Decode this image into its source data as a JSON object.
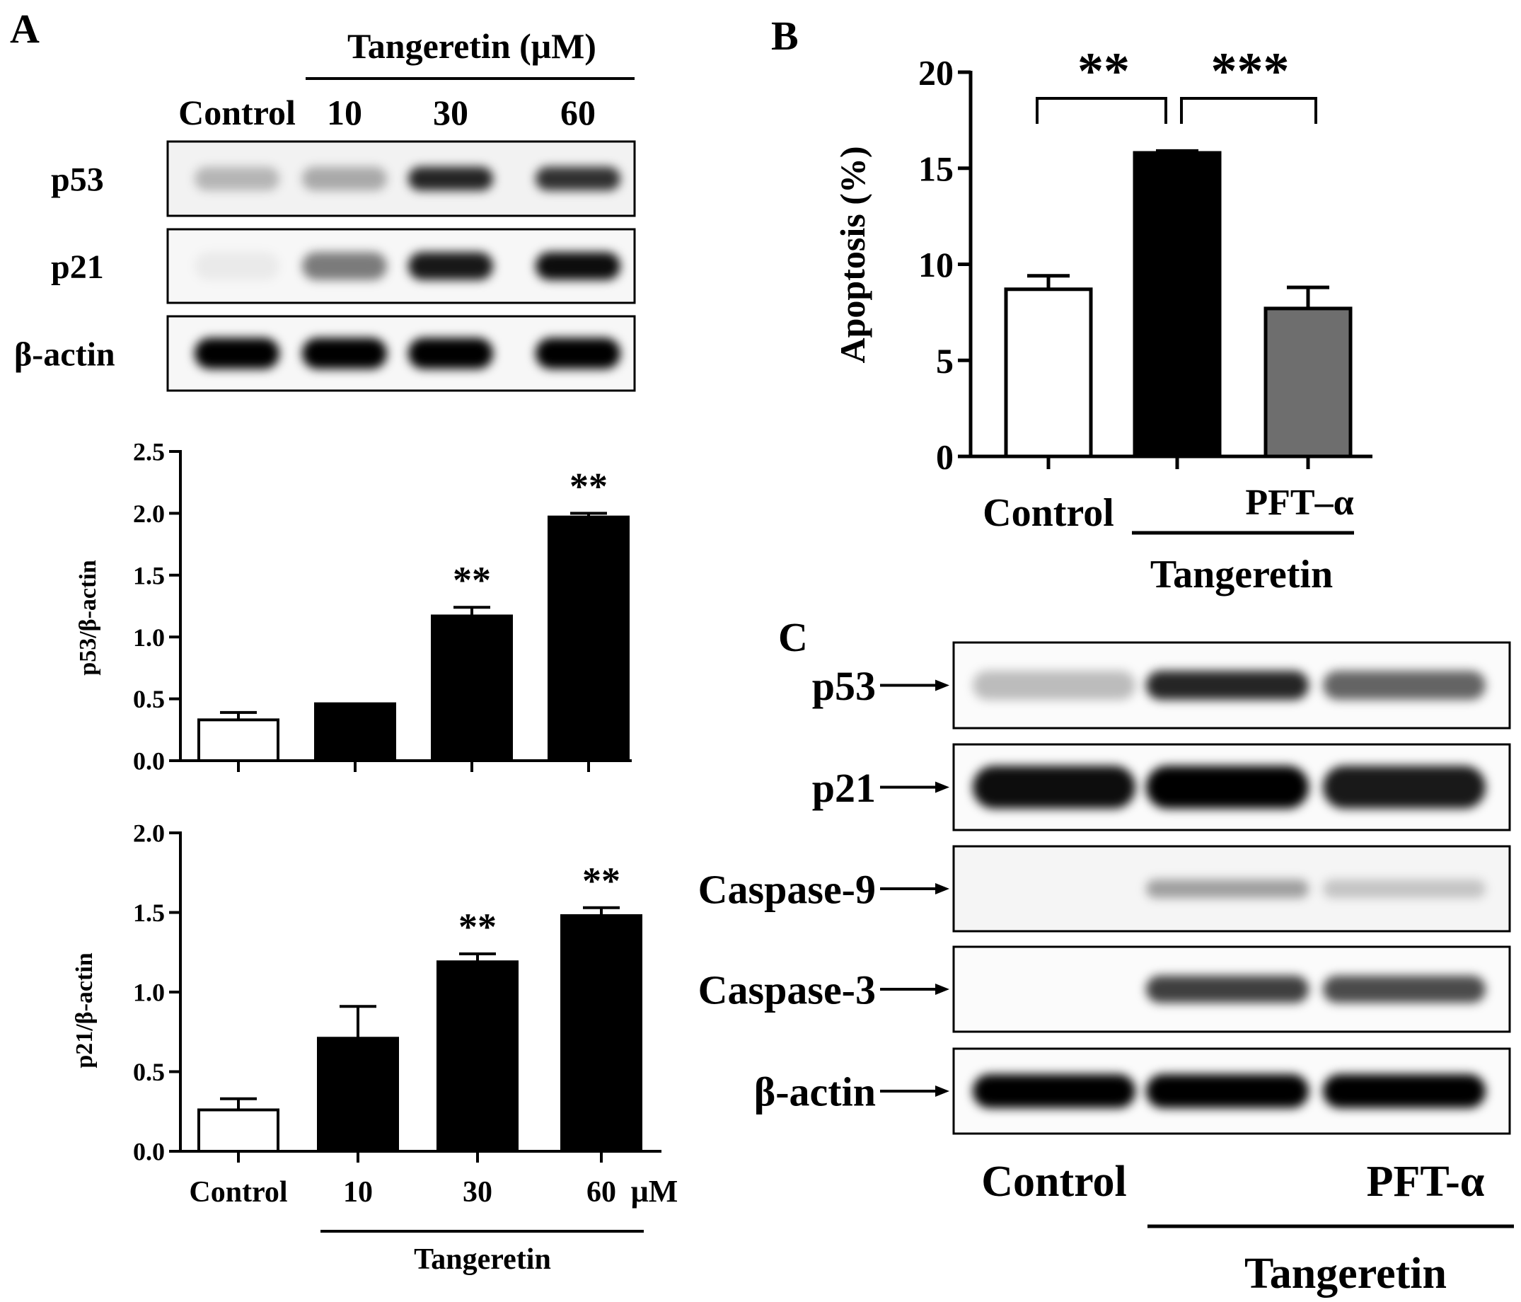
{
  "panel_a": {
    "letter": "A",
    "blot": {
      "treatment_label": "Tangeretin (μM)",
      "lanes": [
        "Control",
        "10",
        "30",
        "60"
      ],
      "rows": [
        {
          "label": "p53",
          "intensities": [
            0.25,
            0.3,
            0.85,
            0.8
          ]
        },
        {
          "label": "p21",
          "intensities": [
            0.05,
            0.5,
            0.9,
            0.95
          ]
        },
        {
          "label": "β-actin",
          "intensities": [
            1.0,
            1.0,
            1.0,
            1.0
          ]
        }
      ]
    },
    "x_unit": "μM",
    "group_label": "Tangeretin"
  },
  "panel_b": {
    "letter": "B",
    "x_labels": {
      "control": "Control",
      "pft": "PFT–α",
      "group": "Tangeretin"
    },
    "brackets": [
      {
        "from": 0,
        "to": 1,
        "label": "**"
      },
      {
        "from": 1,
        "to": 2,
        "label": "***"
      }
    ]
  },
  "panel_c": {
    "letter": "C",
    "rows": [
      {
        "label": "p53",
        "intensities": [
          0.25,
          0.85,
          0.6
        ]
      },
      {
        "label": "p21",
        "intensities": [
          0.95,
          1.0,
          0.9
        ]
      },
      {
        "label": "Caspase-9",
        "intensities": [
          0.0,
          0.35,
          0.2
        ]
      },
      {
        "label": "Caspase-3",
        "intensities": [
          0.0,
          0.75,
          0.7
        ]
      },
      {
        "label": "β-actin",
        "intensities": [
          1.0,
          1.0,
          1.0
        ]
      }
    ],
    "lane_labels": {
      "control": "Control",
      "pft": "PFT-α"
    },
    "group_label": "Tangeretin"
  },
  "chart_data": [
    {
      "type": "bar",
      "panel": "A (top)",
      "categories": [
        "Control",
        "10",
        "30",
        "60"
      ],
      "values": [
        0.33,
        0.46,
        1.17,
        1.97
      ],
      "errors": [
        0.06,
        0.0,
        0.07,
        0.03
      ],
      "significance": [
        "",
        "",
        "**",
        "**"
      ],
      "bar_colors": [
        "#ffffff",
        "#000000",
        "#000000",
        "#000000"
      ],
      "ylabel": "p53/β-actin",
      "ylim": [
        0,
        2.5
      ],
      "yticks": [
        "0.0",
        "0.5",
        "1.0",
        "1.5",
        "2.0",
        "2.5"
      ]
    },
    {
      "type": "bar",
      "panel": "A (bottom)",
      "categories": [
        "Control",
        "10",
        "30",
        "60"
      ],
      "values": [
        0.26,
        0.71,
        1.19,
        1.48
      ],
      "errors": [
        0.07,
        0.2,
        0.05,
        0.05
      ],
      "significance": [
        "",
        "",
        "**",
        "**"
      ],
      "bar_colors": [
        "#ffffff",
        "#000000",
        "#000000",
        "#000000"
      ],
      "ylabel": "p21/β-actin",
      "ylim": [
        0,
        2.0
      ],
      "yticks": [
        "0.0",
        "0.5",
        "1.0",
        "1.5",
        "2.0"
      ]
    },
    {
      "type": "bar",
      "panel": "B",
      "categories": [
        "Control",
        "Tangeretin",
        "Tangeretin + PFT–α"
      ],
      "values": [
        8.7,
        15.8,
        7.7
      ],
      "errors": [
        0.7,
        0.1,
        1.1
      ],
      "bar_colors": [
        "#ffffff",
        "#000000",
        "#6e6e6e"
      ],
      "ylabel": "Apoptosis (%)",
      "ylim": [
        0,
        20
      ],
      "yticks": [
        "0",
        "5",
        "10",
        "15",
        "20"
      ]
    }
  ]
}
